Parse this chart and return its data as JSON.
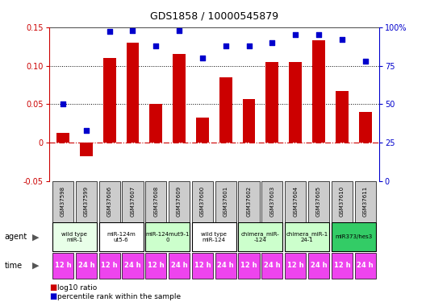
{
  "title": "GDS1858 / 10000545879",
  "samples": [
    "GSM37598",
    "GSM37599",
    "GSM37606",
    "GSM37607",
    "GSM37608",
    "GSM37609",
    "GSM37600",
    "GSM37601",
    "GSM37602",
    "GSM37603",
    "GSM37604",
    "GSM37605",
    "GSM37610",
    "GSM37611"
  ],
  "log10_ratio": [
    0.013,
    -0.018,
    0.11,
    0.13,
    0.05,
    0.115,
    0.033,
    0.085,
    0.057,
    0.105,
    0.105,
    0.133,
    0.067,
    0.04
  ],
  "percentile_rank": [
    50,
    33,
    97,
    98,
    88,
    98,
    80,
    88,
    88,
    90,
    95,
    95,
    92,
    78
  ],
  "agents": [
    {
      "label": "wild type\nmiR-1",
      "cols": [
        0,
        1
      ],
      "color": "#e8ffe8"
    },
    {
      "label": "miR-124m\nut5-6",
      "cols": [
        2,
        3
      ],
      "color": "#ffffff"
    },
    {
      "label": "miR-124mut9-1\n0",
      "cols": [
        4,
        5
      ],
      "color": "#ccffcc"
    },
    {
      "label": "wild type\nmiR-124",
      "cols": [
        6,
        7
      ],
      "color": "#ffffff"
    },
    {
      "label": "chimera_miR-\n-124",
      "cols": [
        8,
        9
      ],
      "color": "#ccffcc"
    },
    {
      "label": "chimera_miR-1\n24-1",
      "cols": [
        10,
        11
      ],
      "color": "#ccffcc"
    },
    {
      "label": "miR373/hes3",
      "cols": [
        12,
        13
      ],
      "color": "#33cc66"
    }
  ],
  "times": [
    "12 h",
    "24 h",
    "12 h",
    "24 h",
    "12 h",
    "24 h",
    "12 h",
    "24 h",
    "12 h",
    "24 h",
    "12 h",
    "24 h",
    "12 h",
    "24 h"
  ],
  "time_color": "#ee44ee",
  "bar_color": "#cc0000",
  "dot_color": "#0000cc",
  "ylim_left": [
    -0.05,
    0.15
  ],
  "ylim_right": [
    0,
    100
  ],
  "yticks_left": [
    -0.05,
    0.0,
    0.05,
    0.1,
    0.15
  ],
  "yticks_right": [
    0,
    25,
    50,
    75,
    100
  ],
  "sample_bg": "#cccccc",
  "background_color": "#ffffff"
}
